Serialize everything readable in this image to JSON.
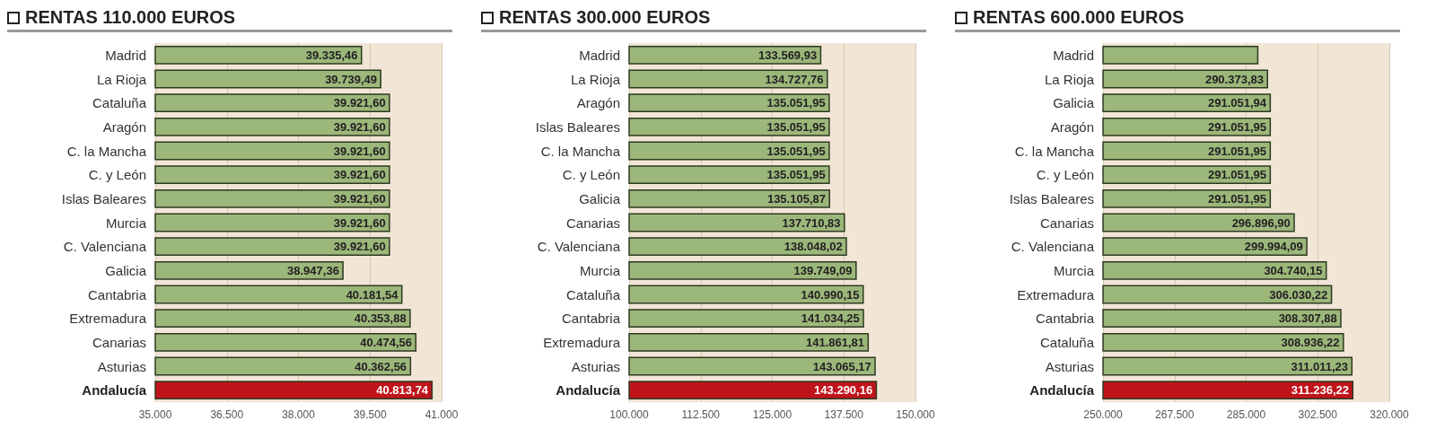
{
  "chart_data": [
    {
      "type": "bar",
      "orientation": "horizontal",
      "title": "RENTAS 110.000 EUROS",
      "grid": "x",
      "categories": [
        "Madrid",
        "La Rioja",
        "Cataluña",
        "Aragón",
        "C. la Mancha",
        "C. y León",
        "Islas Baleares",
        "Murcia",
        "C. Valenciana",
        "Galicia",
        "Cantabria",
        "Extremadura",
        "Canarias",
        "Asturias",
        "Andalucía"
      ],
      "values": [
        39335.46,
        39739.49,
        39921.6,
        39921.6,
        39921.6,
        39921.6,
        39921.6,
        39921.6,
        39921.6,
        38947.36,
        40181.54,
        40353.88,
        40474.56,
        40362.56,
        40813.74
      ],
      "value_labels": [
        "39.335,46",
        "39.739,49",
        "39.921,60",
        "39.921,60",
        "39.921,60",
        "39.921,60",
        "39.921,60",
        "39.921,60",
        "39.921,60",
        "38.947,36",
        "40.181,54",
        "40.353,88",
        "40.474,56",
        "40.362,56",
        "40.813,74"
      ],
      "colors": [
        "#9cb77a",
        "#9cb77a",
        "#9cb77a",
        "#9cb77a",
        "#9cb77a",
        "#9cb77a",
        "#9cb77a",
        "#9cb77a",
        "#9cb77a",
        "#9cb77a",
        "#9cb77a",
        "#9cb77a",
        "#9cb77a",
        "#9cb77a",
        "#c0141c"
      ],
      "xlim": [
        35000,
        41000
      ],
      "xticks": [
        {
          "value": 35000,
          "label": "35.000"
        },
        {
          "value": 36500,
          "label": "36.500"
        },
        {
          "value": 38000,
          "label": "38.000"
        },
        {
          "value": 39500,
          "label": "39.500"
        },
        {
          "value": 41000,
          "label": "41.000"
        }
      ]
    },
    {
      "type": "bar",
      "orientation": "horizontal",
      "title": "RENTAS 300.000 EUROS",
      "grid": "x",
      "categories": [
        "Madrid",
        "La Rioja",
        "Aragón",
        "Islas Baleares",
        "C. la Mancha",
        "C. y León",
        "Galicia",
        "Canarias",
        "C. Valenciana",
        "Murcia",
        "Cataluña",
        "Cantabria",
        "Extremadura",
        "Asturias",
        "Andalucía"
      ],
      "values": [
        133569.93,
        134727.76,
        135051.95,
        135051.95,
        135051.95,
        135051.95,
        135105.87,
        137710.83,
        138048.02,
        139749.09,
        140990.15,
        141034.25,
        141861.81,
        143065.17,
        143290.16
      ],
      "value_labels": [
        "133.569,93",
        "134.727,76",
        "135.051,95",
        "135.051,95",
        "135.051,95",
        "135.051,95",
        "135.105,87",
        "137.710,83",
        "138.048,02",
        "139.749,09",
        "140.990,15",
        "141.034,25",
        "141.861,81",
        "143.065,17",
        "143.290,16"
      ],
      "colors": [
        "#9cb77a",
        "#9cb77a",
        "#9cb77a",
        "#9cb77a",
        "#9cb77a",
        "#9cb77a",
        "#9cb77a",
        "#9cb77a",
        "#9cb77a",
        "#9cb77a",
        "#9cb77a",
        "#9cb77a",
        "#9cb77a",
        "#9cb77a",
        "#c0141c"
      ],
      "xlim": [
        100000,
        150000
      ],
      "xticks": [
        {
          "value": 100000,
          "label": "100.000"
        },
        {
          "value": 112500,
          "label": "112.500"
        },
        {
          "value": 125000,
          "label": "125.000"
        },
        {
          "value": 137500,
          "label": "137.500"
        },
        {
          "value": 150000,
          "label": "150.000"
        }
      ]
    },
    {
      "type": "bar",
      "orientation": "horizontal",
      "title": "RENTAS 600.000 EUROS",
      "grid": "x",
      "categories": [
        "Madrid",
        "La Rioja",
        "Galicia",
        "Aragón",
        "C. la Mancha",
        "C. y León",
        "Islas Baleares",
        "Canarias",
        "C. Valenciana",
        "Murcia",
        "Extremadura",
        "Cantabria",
        "Cataluña",
        "Asturias",
        "Andalucía"
      ],
      "values": [
        288000,
        290373.83,
        291051.94,
        291051.95,
        291051.95,
        291051.95,
        291051.95,
        296896.9,
        299994.09,
        304740.15,
        306030.22,
        308307.88,
        308936.22,
        311011.23,
        311236.22
      ],
      "value_labels": [
        null,
        "290.373,83",
        "291.051,94",
        "291.051,95",
        "291.051,95",
        "291.051,95",
        "291.051,95",
        "296.896,90",
        "299.994,09",
        "304.740,15",
        "306.030,22",
        "308.307,88",
        "308.936,22",
        "311.011,23",
        "311.236,22"
      ],
      "colors": [
        "#9cb77a",
        "#9cb77a",
        "#9cb77a",
        "#9cb77a",
        "#9cb77a",
        "#9cb77a",
        "#9cb77a",
        "#9cb77a",
        "#9cb77a",
        "#9cb77a",
        "#9cb77a",
        "#9cb77a",
        "#9cb77a",
        "#9cb77a",
        "#c0141c"
      ],
      "xlim": [
        250000,
        320000
      ],
      "xticks": [
        {
          "value": 250000,
          "label": "250.000"
        },
        {
          "value": 267500,
          "label": "267.500"
        },
        {
          "value": 285000,
          "label": "285.000"
        },
        {
          "value": 302500,
          "label": "302.500"
        },
        {
          "value": 320000,
          "label": "320.000"
        }
      ]
    }
  ]
}
